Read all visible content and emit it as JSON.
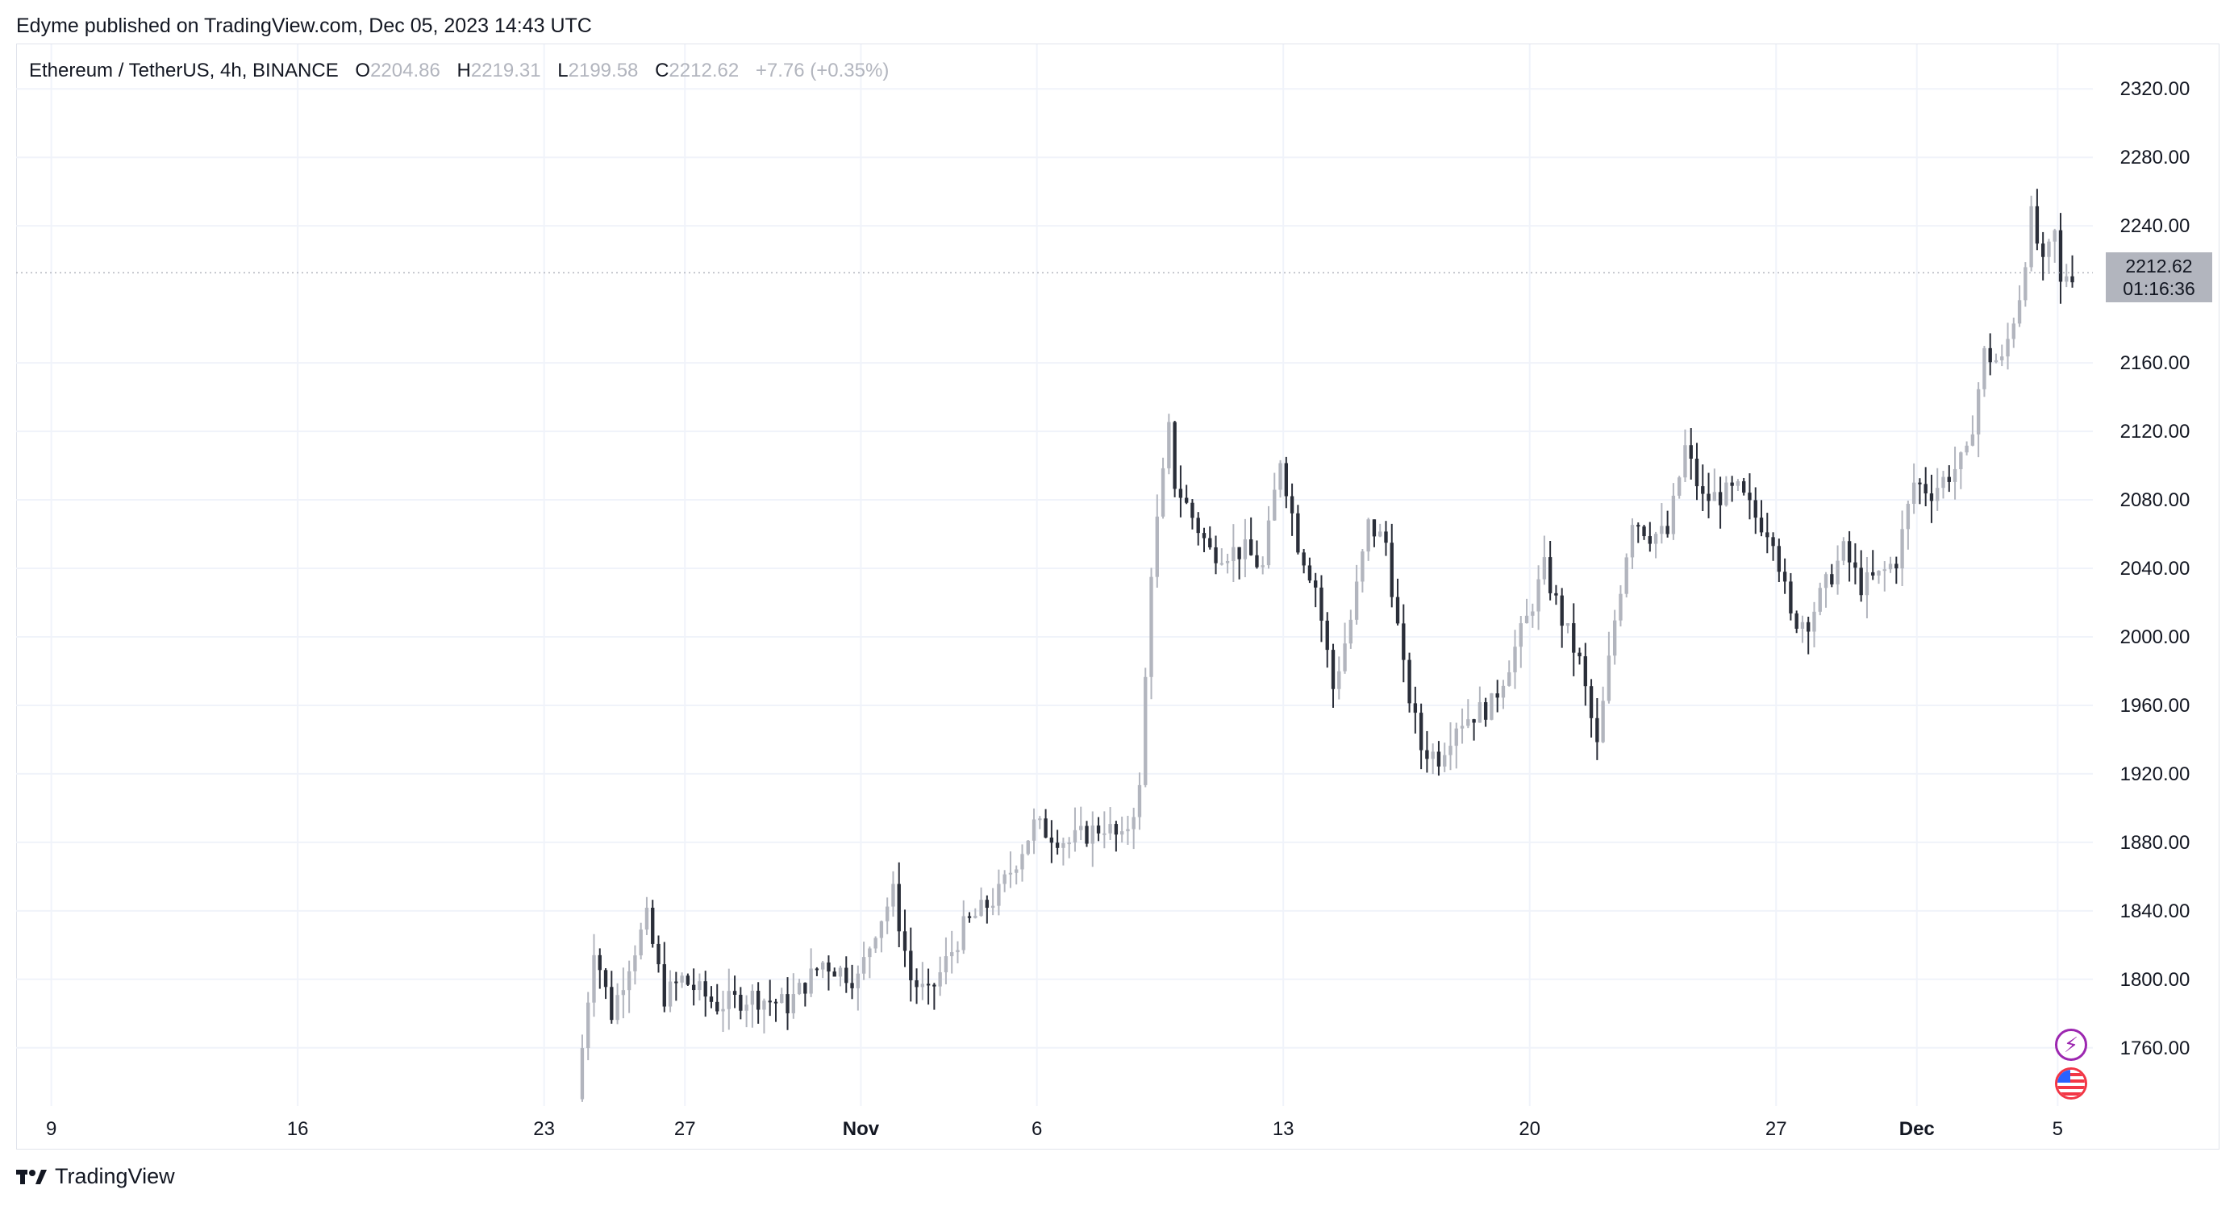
{
  "header": {
    "published_text": "Edyme published on TradingView.com, Dec 05, 2023 14:43 UTC"
  },
  "legend": {
    "symbol": "Ethereum / TetherUS, 4h, BINANCE",
    "open_label": "O",
    "open_value": "2204.86",
    "high_label": "H",
    "high_value": "2219.31",
    "low_label": "L",
    "low_value": "2199.58",
    "close_label": "C",
    "close_value": "2212.62",
    "change": "+7.76 (+0.35%)"
  },
  "price_tag": {
    "price": "2212.62",
    "countdown": "01:16:36"
  },
  "footer": {
    "brand": "TradingView"
  },
  "icons": {
    "bolt": "lightning-icon",
    "flag": "us-flag-icon"
  },
  "colors": {
    "up": "#b2b5be",
    "down": "#2a2e39",
    "grid": "#f0f3fa",
    "text": "#131722"
  },
  "chart_data": {
    "type": "candlestick",
    "symbol": "Ethereum / TetherUS",
    "interval": "4h",
    "exchange": "BINANCE",
    "y_ticks": [
      "1760.00",
      "1800.00",
      "1840.00",
      "1880.00",
      "1920.00",
      "1960.00",
      "2000.00",
      "2040.00",
      "2080.00",
      "2120.00",
      "2160.00",
      "2240.00",
      "2280.00",
      "2320.00"
    ],
    "ylim": [
      1726,
      2346
    ],
    "x_ticks": [
      {
        "label": "9",
        "date": "2023-10-09",
        "bold": false
      },
      {
        "label": "16",
        "date": "2023-10-16",
        "bold": false
      },
      {
        "label": "23",
        "date": "2023-10-23",
        "bold": false
      },
      {
        "label": "27",
        "date": "2023-10-27",
        "bold": false
      },
      {
        "label": "Nov",
        "date": "2023-11-01",
        "bold": true
      },
      {
        "label": "6",
        "date": "2023-11-06",
        "bold": false
      },
      {
        "label": "13",
        "date": "2023-11-13",
        "bold": false
      },
      {
        "label": "20",
        "date": "2023-11-20",
        "bold": false
      },
      {
        "label": "27",
        "date": "2023-11-27",
        "bold": false
      },
      {
        "label": "Dec",
        "date": "2023-12-01",
        "bold": true
      },
      {
        "label": "5",
        "date": "2023-12-05",
        "bold": false
      }
    ],
    "xlim": [
      "2023-10-08",
      "2023-12-06"
    ],
    "current_price": 2212.62,
    "grid": true,
    "ohlc_anchors": [
      {
        "date": "2023-10-24",
        "price": 1730
      },
      {
        "date": "2023-10-24T12",
        "price": 1820
      },
      {
        "date": "2023-10-25",
        "price": 1780
      },
      {
        "date": "2023-10-25T12",
        "price": 1810
      },
      {
        "date": "2023-10-26",
        "price": 1835
      },
      {
        "date": "2023-10-26T12",
        "price": 1790
      },
      {
        "date": "2023-10-27",
        "price": 1800
      },
      {
        "date": "2023-10-28",
        "price": 1785
      },
      {
        "date": "2023-10-29",
        "price": 1790
      },
      {
        "date": "2023-10-30",
        "price": 1785
      },
      {
        "date": "2023-10-31",
        "price": 1810
      },
      {
        "date": "2023-11-01",
        "price": 1800
      },
      {
        "date": "2023-11-01T12",
        "price": 1830
      },
      {
        "date": "2023-11-02",
        "price": 1850
      },
      {
        "date": "2023-11-02T12",
        "price": 1800
      },
      {
        "date": "2023-11-03",
        "price": 1790
      },
      {
        "date": "2023-11-04",
        "price": 1830
      },
      {
        "date": "2023-11-05",
        "price": 1850
      },
      {
        "date": "2023-11-06",
        "price": 1890
      },
      {
        "date": "2023-11-07",
        "price": 1880
      },
      {
        "date": "2023-11-08",
        "price": 1890
      },
      {
        "date": "2023-11-08T12",
        "price": 1880
      },
      {
        "date": "2023-11-09",
        "price": 1910
      },
      {
        "date": "2023-11-09T08",
        "price": 2040
      },
      {
        "date": "2023-11-09T20",
        "price": 2120
      },
      {
        "date": "2023-11-10",
        "price": 2090
      },
      {
        "date": "2023-11-11",
        "price": 2050
      },
      {
        "date": "2023-11-12",
        "price": 2050
      },
      {
        "date": "2023-11-12T12",
        "price": 2040
      },
      {
        "date": "2023-11-13",
        "price": 2105
      },
      {
        "date": "2023-11-13T12",
        "price": 2055
      },
      {
        "date": "2023-11-14",
        "price": 2030
      },
      {
        "date": "2023-11-14T12",
        "price": 1970
      },
      {
        "date": "2023-11-15",
        "price": 2010
      },
      {
        "date": "2023-11-15T12",
        "price": 2065
      },
      {
        "date": "2023-11-16",
        "price": 2055
      },
      {
        "date": "2023-11-16T12",
        "price": 1980
      },
      {
        "date": "2023-11-17",
        "price": 1935
      },
      {
        "date": "2023-11-17T12",
        "price": 1930
      },
      {
        "date": "2023-11-18",
        "price": 1950
      },
      {
        "date": "2023-11-19",
        "price": 1960
      },
      {
        "date": "2023-11-20",
        "price": 2010
      },
      {
        "date": "2023-11-20T12",
        "price": 2040
      },
      {
        "date": "2023-11-21",
        "price": 2010
      },
      {
        "date": "2023-11-21T12",
        "price": 1985
      },
      {
        "date": "2023-11-22",
        "price": 1935
      },
      {
        "date": "2023-11-22T12",
        "price": 2010
      },
      {
        "date": "2023-11-23",
        "price": 2070
      },
      {
        "date": "2023-11-23T12",
        "price": 2060
      },
      {
        "date": "2023-11-24",
        "price": 2060
      },
      {
        "date": "2023-11-24T12",
        "price": 2110
      },
      {
        "date": "2023-11-25",
        "price": 2080
      },
      {
        "date": "2023-11-26",
        "price": 2085
      },
      {
        "date": "2023-11-26T12",
        "price": 2070
      },
      {
        "date": "2023-11-27",
        "price": 2060
      },
      {
        "date": "2023-11-27T12",
        "price": 2010
      },
      {
        "date": "2023-11-28",
        "price": 2010
      },
      {
        "date": "2023-11-28T12",
        "price": 2030
      },
      {
        "date": "2023-11-29",
        "price": 2050
      },
      {
        "date": "2023-11-29T12",
        "price": 2030
      },
      {
        "date": "2023-11-30",
        "price": 2035
      },
      {
        "date": "2023-11-30T12",
        "price": 2045
      },
      {
        "date": "2023-12-01",
        "price": 2090
      },
      {
        "date": "2023-12-01T12",
        "price": 2085
      },
      {
        "date": "2023-12-02",
        "price": 2095
      },
      {
        "date": "2023-12-02T12",
        "price": 2105
      },
      {
        "date": "2023-12-03",
        "price": 2165
      },
      {
        "date": "2023-12-03T12",
        "price": 2160
      },
      {
        "date": "2023-12-04",
        "price": 2200
      },
      {
        "date": "2023-12-04T08",
        "price": 2245
      },
      {
        "date": "2023-12-04T16",
        "price": 2215
      },
      {
        "date": "2023-12-05",
        "price": 2235
      },
      {
        "date": "2023-12-05T04",
        "price": 2204.86
      },
      {
        "date": "2023-12-05T08",
        "price": 2212.62
      }
    ]
  }
}
